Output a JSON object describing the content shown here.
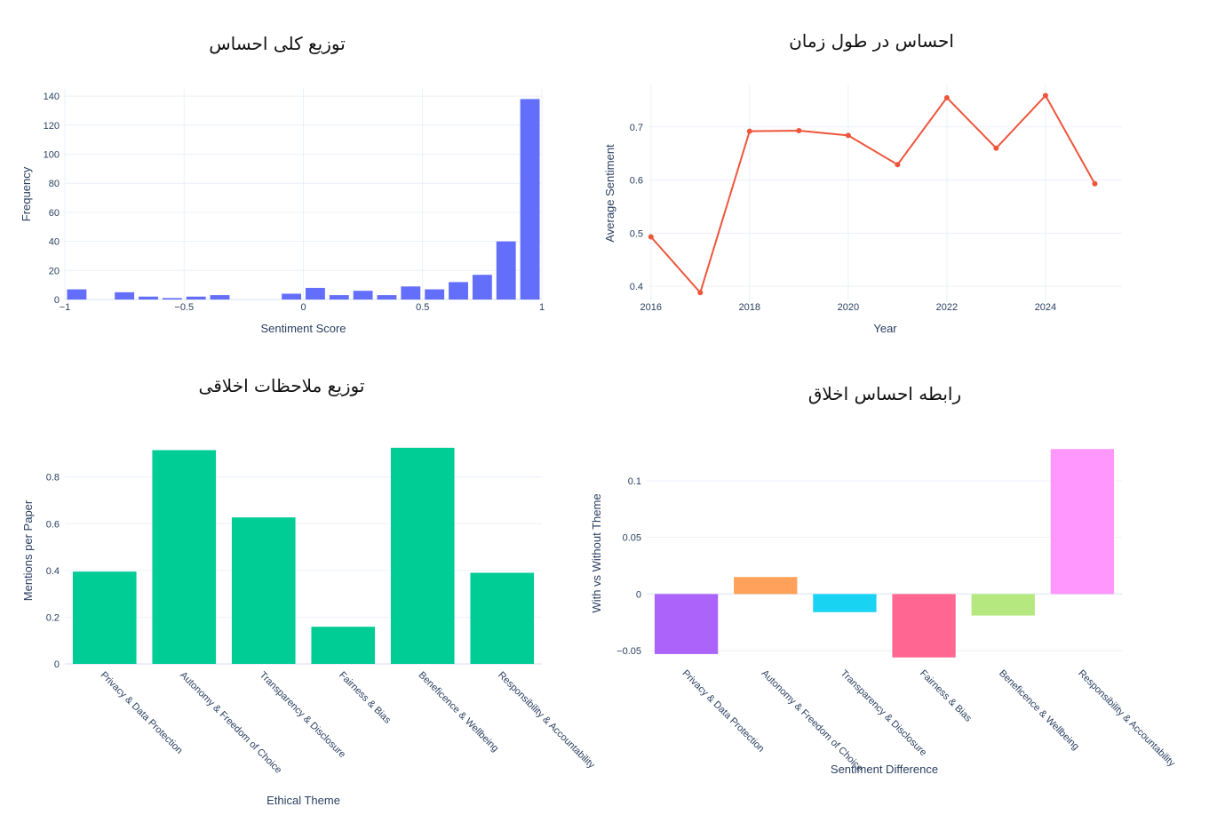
{
  "chart_data": [
    {
      "id": "hist",
      "type": "bar",
      "title": "توزیع کلی احساس",
      "xlabel": "Sentiment Score",
      "ylabel": "Frequency",
      "xlim": [
        -1,
        1
      ],
      "ylim": [
        0,
        145
      ],
      "xticks": [
        {
          "v": -1,
          "label": "−1"
        },
        {
          "v": -0.5,
          "label": "−0.5"
        },
        {
          "v": 0,
          "label": "0"
        },
        {
          "v": 0.5,
          "label": "0.5"
        },
        {
          "v": 1,
          "label": "1"
        }
      ],
      "yticks": [
        0,
        20,
        40,
        60,
        80,
        100,
        120,
        140
      ],
      "color": "#636efa",
      "bin_width": 0.1,
      "bins": [
        {
          "start": -1.0,
          "count": 7
        },
        {
          "start": -0.8,
          "count": 5
        },
        {
          "start": -0.7,
          "count": 2
        },
        {
          "start": -0.6,
          "count": 1
        },
        {
          "start": -0.5,
          "count": 2
        },
        {
          "start": -0.4,
          "count": 3
        },
        {
          "start": -0.1,
          "count": 4
        },
        {
          "start": 0.0,
          "count": 8
        },
        {
          "start": 0.1,
          "count": 3
        },
        {
          "start": 0.2,
          "count": 6
        },
        {
          "start": 0.3,
          "count": 3
        },
        {
          "start": 0.4,
          "count": 9
        },
        {
          "start": 0.5,
          "count": 7
        },
        {
          "start": 0.6,
          "count": 12
        },
        {
          "start": 0.7,
          "count": 17
        },
        {
          "start": 0.8,
          "count": 40
        },
        {
          "start": 0.9,
          "count": 138
        }
      ]
    },
    {
      "id": "line",
      "type": "line",
      "title": "احساس در طول زمان",
      "xlabel": "Year",
      "ylabel": "Average Sentiment",
      "xlim": [
        2015.95,
        2025.55
      ],
      "ylim": [
        0.37,
        0.78
      ],
      "xticks": [
        2016,
        2018,
        2020,
        2022,
        2024
      ],
      "yticks": [
        0.4,
        0.5,
        0.6,
        0.7
      ],
      "color": "#ef553b",
      "x": [
        2016,
        2017,
        2018,
        2019,
        2020,
        2021,
        2022,
        2023,
        2024,
        2025
      ],
      "y": [
        0.493,
        0.388,
        0.692,
        0.693,
        0.684,
        0.629,
        0.755,
        0.66,
        0.759,
        0.593
      ]
    },
    {
      "id": "themes",
      "type": "bar",
      "title": "توزیع ملاحظات اخلاقی",
      "xlabel": "Ethical Theme",
      "ylabel": "Mentions per Paper",
      "ylim": [
        0,
        0.97
      ],
      "yticks": [
        0,
        0.2,
        0.4,
        0.6,
        0.8
      ],
      "color": "#00cc96",
      "categories": [
        "Privacy & Data Protection",
        "Autonomy & Freedom of Choice",
        "Transparency & Disclosure",
        "Fairness & Bias",
        "Beneficence & Wellbeing",
        "Responsibility & Accountability"
      ],
      "values": [
        0.395,
        0.915,
        0.627,
        0.159,
        0.925,
        0.39
      ]
    },
    {
      "id": "diff",
      "type": "bar",
      "title": "رابطه احساس اخلاق",
      "xlabel": "Sentiment Difference",
      "ylabel": "With vs Without Theme",
      "ylim": [
        -0.0625,
        0.1345
      ],
      "yticks": [
        {
          "v": -0.05,
          "label": "−0.05"
        },
        {
          "v": 0,
          "label": "0"
        },
        {
          "v": 0.05,
          "label": "0.05"
        },
        {
          "v": 0.1,
          "label": "0.1"
        }
      ],
      "categories": [
        "Privacy & Data Protection",
        "Autonomy & Freedom of Choice",
        "Transparency & Disclosure",
        "Fairness & Bias",
        "Beneficence & Wellbeing",
        "Responsibility & Accountability"
      ],
      "values": [
        -0.053,
        0.015,
        -0.016,
        -0.056,
        -0.019,
        0.128
      ],
      "colors": [
        "#ab63fa",
        "#ffa15a",
        "#19d3f3",
        "#ff6692",
        "#b6e880",
        "#ff97ff"
      ]
    }
  ]
}
